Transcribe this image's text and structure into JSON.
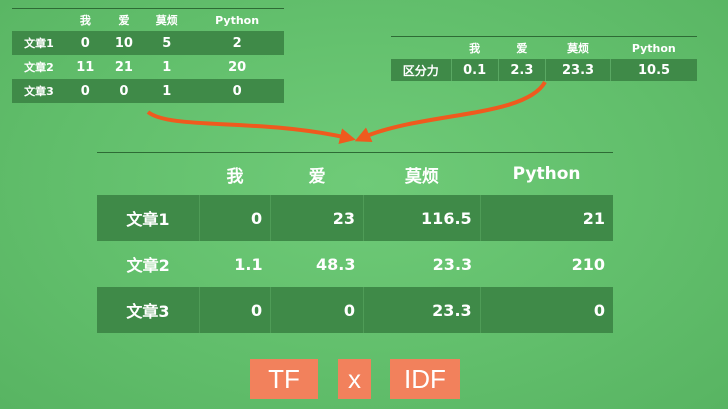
{
  "tf_table": {
    "headers": [
      "",
      "我",
      "爱",
      "莫烦",
      "Python"
    ],
    "rows": [
      {
        "label": "文章1",
        "values": [
          "0",
          "10",
          "5",
          "2"
        ]
      },
      {
        "label": "文章2",
        "values": [
          "11",
          "21",
          "1",
          "20"
        ]
      },
      {
        "label": "文章3",
        "values": [
          "0",
          "0",
          "1",
          "0"
        ]
      }
    ]
  },
  "idf_table": {
    "headers": [
      "",
      "我",
      "爱",
      "莫烦",
      "Python"
    ],
    "row": {
      "label": "区分力",
      "values": [
        "0.1",
        "2.3",
        "23.3",
        "10.5"
      ]
    }
  },
  "result_table": {
    "headers": [
      "",
      "我",
      "爱",
      "莫烦",
      "Python"
    ],
    "rows": [
      {
        "label": "文章1",
        "values": [
          "0",
          "23",
          "116.5",
          "21"
        ]
      },
      {
        "label": "文章2",
        "values": [
          "1.1",
          "48.3",
          "23.3",
          "210"
        ]
      },
      {
        "label": "文章3",
        "values": [
          "0",
          "0",
          "23.3",
          "0"
        ]
      }
    ]
  },
  "formula": {
    "left": "TF",
    "operator": "x",
    "right": "IDF"
  },
  "colors": {
    "background": "#62bf6c",
    "row_dark": "#3f8a48",
    "arrow": "#ef5a1e",
    "formula_box": "#f2815c"
  }
}
